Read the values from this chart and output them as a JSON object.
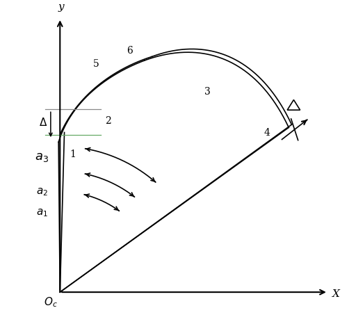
{
  "bg_color": "#ffffff",
  "figsize": [
    5.12,
    4.77
  ],
  "dpi": 100,
  "ox": 0.09,
  "oy": 0.07,
  "lw": 1.2
}
